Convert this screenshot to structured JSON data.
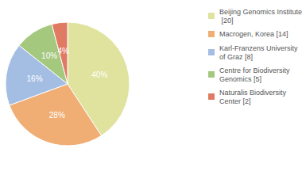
{
  "chart_data": {
    "type": "pie",
    "categories": [
      "Beijing Genomics Institute [20]",
      "Macrogen, Korea [14]",
      "Karl-Franzens University of Graz [8]",
      "Centre for Biodiversity Genomics [5]",
      "Naturalis Biodiversity Center [2]"
    ],
    "values": [
      40,
      28,
      16,
      10,
      4
    ],
    "value_labels": [
      "40%",
      "28%",
      "16%",
      "10%",
      "4%"
    ],
    "colors": [
      "#dfe39d",
      "#f0ad74",
      "#a3bde3",
      "#a4c87e",
      "#e07b63"
    ],
    "data_labels": true,
    "legend": "right"
  }
}
